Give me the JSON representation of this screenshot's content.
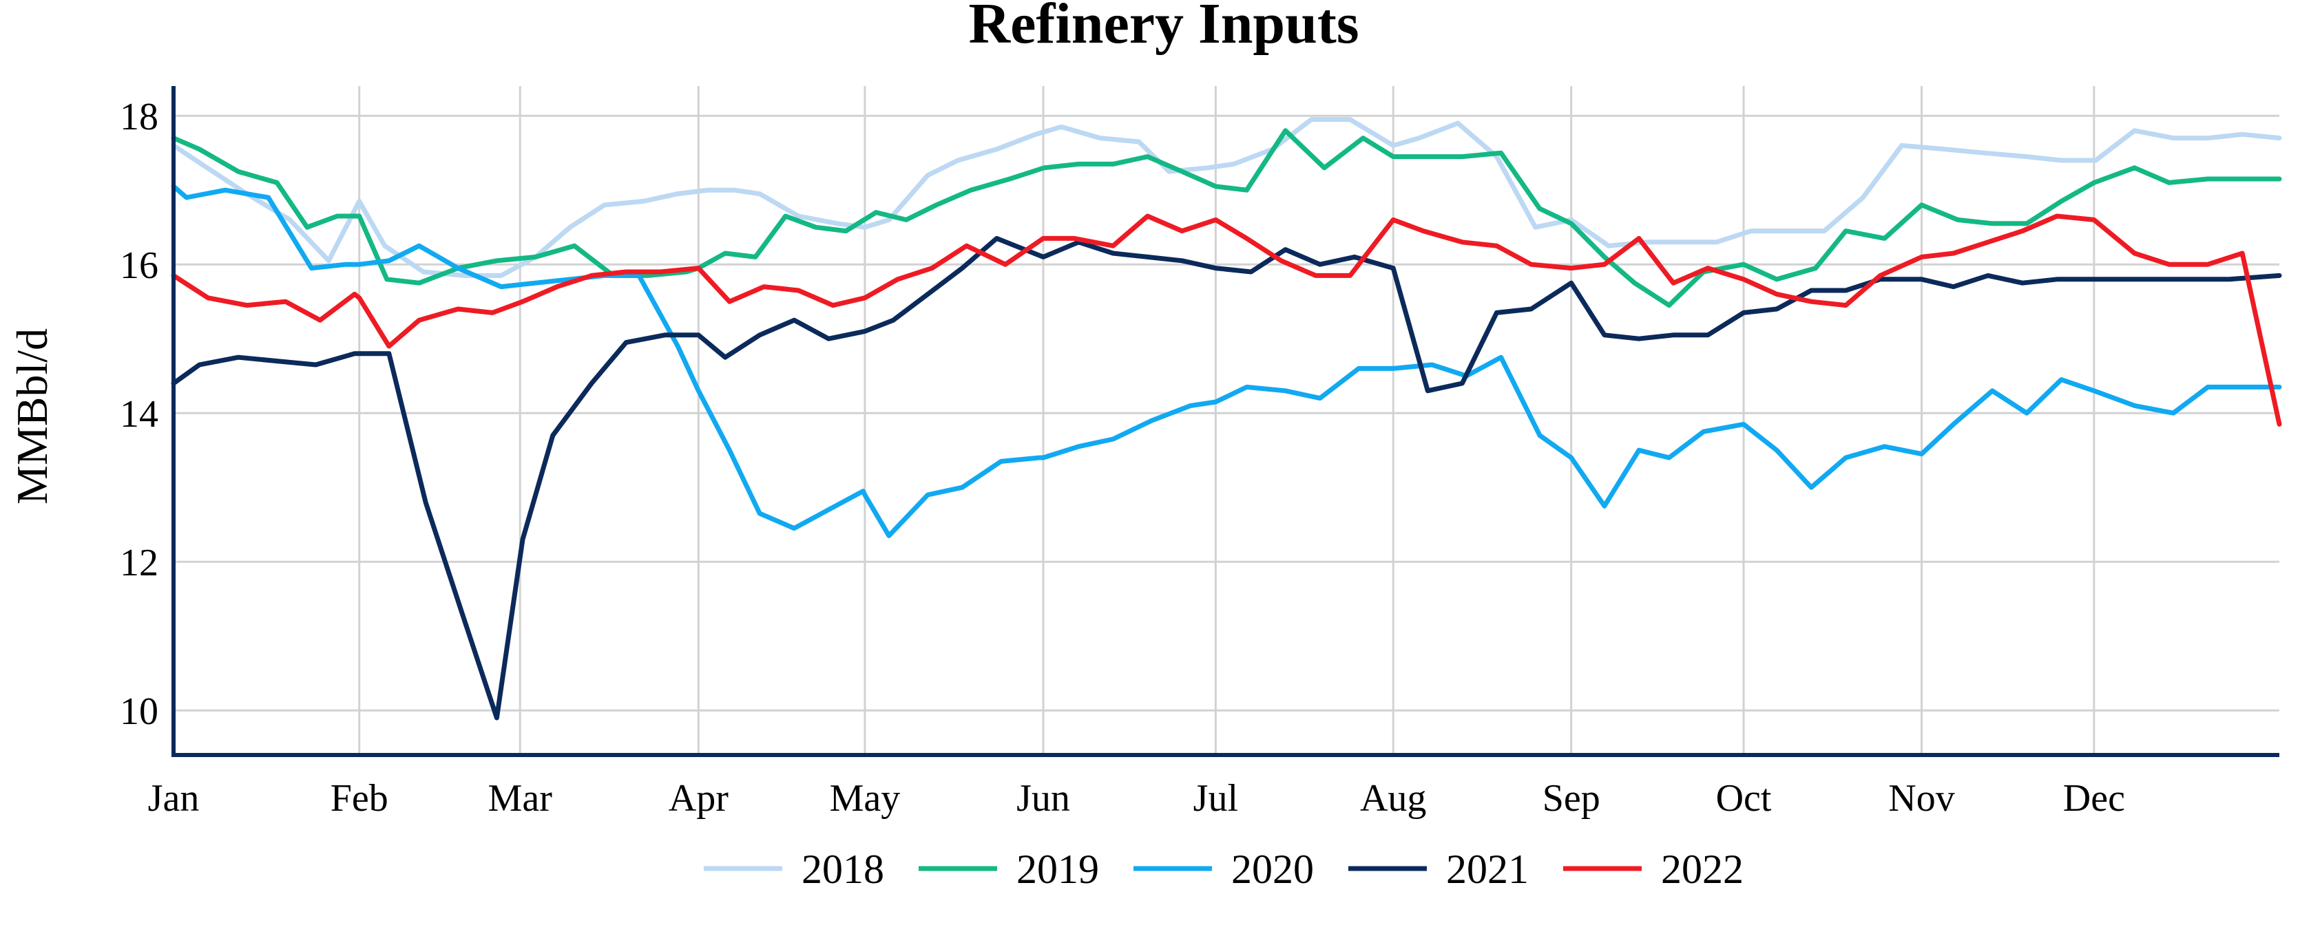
{
  "chart_data": {
    "type": "line",
    "title": "Refinery Inputs",
    "ylabel": "MMBbl/d",
    "xlabel": "",
    "x_unit": "week of year",
    "months": [
      "Jan",
      "Feb",
      "Mar",
      "Apr",
      "May",
      "Jun",
      "Jul",
      "Aug",
      "Sep",
      "Oct",
      "Nov",
      "Dec"
    ],
    "month_ticks": [
      1,
      5.31,
      9.04,
      13.18,
      17.04,
      21.18,
      25.18,
      29.3,
      33.43,
      37.43,
      41.56,
      45.56
    ],
    "xlim": [
      1,
      49.86
    ],
    "yticks": [
      10,
      12,
      14,
      16,
      18
    ],
    "ylim": [
      9.4,
      18.4
    ],
    "grid": true,
    "legend_position": "bottom",
    "series": [
      {
        "name": "2018",
        "color": "#bcd8f3",
        "x": [
          1,
          1.65,
          2.7,
          3.7,
          4.6,
          5.31,
          5.9,
          6.8,
          7.75,
          8.6,
          9.4,
          10.2,
          11,
          11.9,
          12.7,
          13.4,
          14,
          14.6,
          15.5,
          16.4,
          17.04,
          17.6,
          18.5,
          19.2,
          20.1,
          21,
          21.6,
          22.5,
          23.4,
          24.1,
          25,
          25.6,
          26.5,
          27.4,
          28.3,
          29.3,
          29.9,
          30.8,
          31.7,
          32.6,
          33.43,
          34.3,
          35.2,
          36,
          36.8,
          37.6,
          38.4,
          39.3,
          40.2,
          41.1,
          42.1,
          43,
          44,
          44.8,
          45.6,
          46.5,
          47.4,
          48.2,
          49,
          49.86
        ],
        "y": [
          17.6,
          17.35,
          16.95,
          16.6,
          16.05,
          16.85,
          16.25,
          15.9,
          15.85,
          15.85,
          16.1,
          16.5,
          16.8,
          16.85,
          16.95,
          17.0,
          17.0,
          16.95,
          16.65,
          16.55,
          16.5,
          16.6,
          17.2,
          17.4,
          17.55,
          17.75,
          17.85,
          17.7,
          17.65,
          17.25,
          17.3,
          17.35,
          17.55,
          17.95,
          17.95,
          17.6,
          17.7,
          17.9,
          17.45,
          16.5,
          16.6,
          16.25,
          16.3,
          16.3,
          16.3,
          16.45,
          16.45,
          16.45,
          16.9,
          17.6,
          17.55,
          17.5,
          17.45,
          17.4,
          17.4,
          17.8,
          17.7,
          17.7,
          17.75,
          17.7
        ]
      },
      {
        "name": "2019",
        "color": "#14b884",
        "x": [
          1,
          1.6,
          2.5,
          3.4,
          4.1,
          4.8,
          5.31,
          5.95,
          6.7,
          7.6,
          8.5,
          9.4,
          10.3,
          11.2,
          12.0,
          12.9,
          13.18,
          13.8,
          14.5,
          15.2,
          15.9,
          16.6,
          17.3,
          18,
          18.7,
          19.5,
          20.4,
          21.2,
          22.0,
          22.8,
          23.6,
          24.4,
          25.18,
          25.9,
          26.8,
          27.7,
          28.6,
          29.3,
          30.0,
          30.9,
          31.8,
          32.7,
          33.43,
          34.2,
          34.9,
          35.7,
          36.5,
          37.43,
          38.2,
          39.1,
          39.8,
          40.7,
          41.56,
          42.4,
          43.2,
          44.0,
          44.8,
          45.56,
          46.5,
          47.3,
          48.2,
          49.0,
          49.86
        ],
        "y": [
          17.7,
          17.55,
          17.25,
          17.1,
          16.5,
          16.65,
          16.65,
          15.8,
          15.75,
          15.95,
          16.05,
          16.1,
          16.25,
          15.85,
          15.85,
          15.9,
          15.95,
          16.15,
          16.1,
          16.65,
          16.5,
          16.45,
          16.7,
          16.6,
          16.8,
          17.0,
          17.15,
          17.3,
          17.35,
          17.35,
          17.45,
          17.25,
          17.05,
          17.0,
          17.8,
          17.3,
          17.7,
          17.45,
          17.45,
          17.45,
          17.5,
          16.75,
          16.55,
          16.1,
          15.75,
          15.45,
          15.9,
          16.0,
          15.8,
          15.95,
          16.45,
          16.35,
          16.8,
          16.6,
          16.55,
          16.55,
          16.85,
          17.1,
          17.3,
          17.1,
          17.15,
          17.15,
          17.15
        ]
      },
      {
        "name": "2020",
        "color": "#11a9f1",
        "x": [
          1,
          1.3,
          2.2,
          3.2,
          4.2,
          5.0,
          5.31,
          6.0,
          6.7,
          7.6,
          8.6,
          9.4,
          10.2,
          11.0,
          11.8,
          12.7,
          13.18,
          13.9,
          14.6,
          15.4,
          16.2,
          17.0,
          17.04,
          17.6,
          18.5,
          19.3,
          20.2,
          21.1,
          21.18,
          22.0,
          22.8,
          23.7,
          24.6,
          25.18,
          25.9,
          26.8,
          27.6,
          28.5,
          29.3,
          30.2,
          31.0,
          31.8,
          32.7,
          33.43,
          34.2,
          35.0,
          35.7,
          36.5,
          37.43,
          38.2,
          39.0,
          39.8,
          40.7,
          41.56,
          42.3,
          43.2,
          44.0,
          44.8,
          45.56,
          46.5,
          47.4,
          48.2,
          49.0,
          49.86
        ],
        "y": [
          17.05,
          16.9,
          17.0,
          16.9,
          15.95,
          16.0,
          16.0,
          16.05,
          16.25,
          15.95,
          15.7,
          15.75,
          15.8,
          15.85,
          15.85,
          14.9,
          14.3,
          13.5,
          12.65,
          12.45,
          12.7,
          12.95,
          12.9,
          12.35,
          12.9,
          13.0,
          13.35,
          13.4,
          13.4,
          13.55,
          13.65,
          13.9,
          14.1,
          14.15,
          14.35,
          14.3,
          14.2,
          14.6,
          14.6,
          14.65,
          14.5,
          14.75,
          13.7,
          13.4,
          12.75,
          13.5,
          13.4,
          13.75,
          13.85,
          13.5,
          13.0,
          13.4,
          13.55,
          13.45,
          13.85,
          14.3,
          14.0,
          14.45,
          14.3,
          14.1,
          14.0,
          14.35,
          14.35,
          14.35
        ]
      },
      {
        "name": "2021",
        "color": "#0b2a5b",
        "x": [
          1,
          1.6,
          2.5,
          3.4,
          4.3,
          5.2,
          5.31,
          6.0,
          6.85,
          7.7,
          8.5,
          9.1,
          9.8,
          10.7,
          11.5,
          12.4,
          13.18,
          13.8,
          14.6,
          15.4,
          16.2,
          17.04,
          17.7,
          18.5,
          19.3,
          20.1,
          21.18,
          22.0,
          22.8,
          23.6,
          24.4,
          25.18,
          26.0,
          26.8,
          27.6,
          28.4,
          29.3,
          30.1,
          30.9,
          31.7,
          32.5,
          33.43,
          34.2,
          35.0,
          35.8,
          36.6,
          37.43,
          38.2,
          39.0,
          39.8,
          40.6,
          41.56,
          42.3,
          43.1,
          43.9,
          44.7,
          45.56,
          46.3,
          47.1,
          47.9,
          48.7,
          49.86
        ],
        "y": [
          14.4,
          14.65,
          14.75,
          14.7,
          14.65,
          14.8,
          14.8,
          14.8,
          12.8,
          11.3,
          9.9,
          12.3,
          13.7,
          14.4,
          14.95,
          15.05,
          15.05,
          14.75,
          15.05,
          15.25,
          15.0,
          15.1,
          15.25,
          15.6,
          15.95,
          16.35,
          16.1,
          16.3,
          16.15,
          16.1,
          16.05,
          15.95,
          15.9,
          16.2,
          16.0,
          16.1,
          15.95,
          14.3,
          14.4,
          15.35,
          15.4,
          15.75,
          15.05,
          15.0,
          15.05,
          15.05,
          15.35,
          15.4,
          15.65,
          15.65,
          15.8,
          15.8,
          15.7,
          15.85,
          15.75,
          15.8,
          15.8,
          15.8,
          15.8,
          15.8,
          15.8,
          15.85
        ]
      },
      {
        "name": "2022",
        "color": "#ee1b24",
        "x": [
          1,
          1.8,
          2.7,
          3.6,
          4.4,
          5.2,
          5.31,
          6.0,
          6.7,
          7.6,
          8.4,
          9.1,
          9.9,
          10.7,
          11.5,
          12.3,
          13.18,
          13.9,
          14.7,
          15.5,
          16.3,
          17.04,
          17.8,
          18.6,
          19.4,
          20.3,
          21.18,
          21.9,
          22.8,
          23.6,
          24.4,
          25.18,
          25.9,
          26.7,
          27.5,
          28.3,
          29.3,
          30.0,
          30.9,
          31.7,
          32.5,
          33.43,
          34.2,
          35.0,
          35.8,
          36.6,
          37.43,
          38.2,
          39.0,
          39.8,
          40.6,
          41.56,
          42.3,
          43.1,
          43.9,
          44.7,
          45.56,
          46.5,
          47.3,
          48.2,
          49.0,
          49.86
        ],
        "y": [
          15.85,
          15.55,
          15.45,
          15.5,
          15.25,
          15.6,
          15.55,
          14.9,
          15.25,
          15.4,
          15.35,
          15.5,
          15.7,
          15.85,
          15.9,
          15.9,
          15.95,
          15.5,
          15.7,
          15.65,
          15.45,
          15.55,
          15.8,
          15.95,
          16.25,
          16.0,
          16.35,
          16.35,
          16.25,
          16.65,
          16.45,
          16.6,
          16.35,
          16.05,
          15.85,
          15.85,
          16.6,
          16.45,
          16.3,
          16.25,
          16.0,
          15.95,
          16.0,
          16.35,
          15.75,
          15.95,
          15.8,
          15.6,
          15.5,
          15.45,
          15.85,
          16.1,
          16.15,
          16.3,
          16.45,
          16.65,
          16.6,
          16.15,
          16.0,
          16.0,
          16.15,
          13.85
        ]
      }
    ]
  }
}
